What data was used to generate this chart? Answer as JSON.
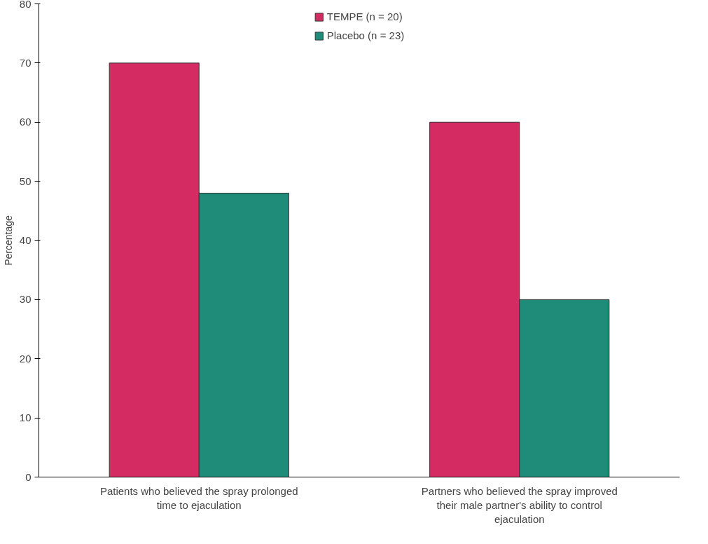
{
  "chart_data": {
    "type": "bar",
    "ylabel": "Percentage",
    "categories": [
      "Patients who believed the spray prolonged time to ejaculation",
      "Partners who believed the spray improved their male partner's ability to control ejaculation"
    ],
    "series": [
      {
        "name": "TEMPE (n = 20)",
        "color": "#d42b63",
        "values": [
          70,
          60
        ]
      },
      {
        "name": "Placebo (n = 23)",
        "color": "#1e8c78",
        "values": [
          48,
          30
        ]
      }
    ],
    "ylim": [
      0,
      80
    ],
    "yticks": [
      0,
      10,
      20,
      30,
      40,
      50,
      60,
      70,
      80
    ],
    "grid": false,
    "legend": "top center"
  }
}
